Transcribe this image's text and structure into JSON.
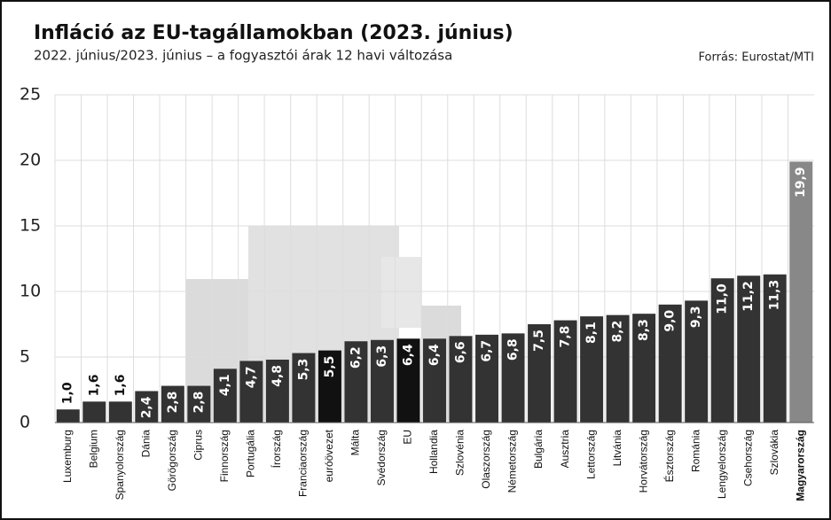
{
  "chart_data": {
    "type": "bar",
    "title": "Infláció az EU-tagállamokban (2023. június)",
    "subtitle": "2022. június/2023. június – a fogyasztói árak 12 havi változása",
    "source": "Forrás: Eurostat/MTI",
    "categories": [
      "Luxemburg",
      "Belgium",
      "Spanyolország",
      "Dánia",
      "Görögország",
      "Ciprus",
      "Finnország",
      "Portugália",
      "Írország",
      "Franciaország",
      "euróövezet",
      "Málta",
      "Svédország",
      "EU",
      "Hollandia",
      "Szlovénia",
      "Olaszország",
      "Németország",
      "Bulgária",
      "Ausztria",
      "Lettország",
      "Litvánia",
      "Horvátország",
      "Észtország",
      "Románia",
      "Lengyelország",
      "Csehország",
      "Szlovákia",
      "Magyarország"
    ],
    "values": [
      1.0,
      1.6,
      1.6,
      2.4,
      2.8,
      2.8,
      4.1,
      4.7,
      4.8,
      5.3,
      5.5,
      6.2,
      6.3,
      6.4,
      6.4,
      6.6,
      6.7,
      6.8,
      7.5,
      7.8,
      8.1,
      8.2,
      8.3,
      9.0,
      9.3,
      11.0,
      11.2,
      11.3,
      19.9
    ],
    "value_labels": [
      "1,0",
      "1,6",
      "1,6",
      "2,4",
      "2,8",
      "2,8",
      "4,1",
      "4,7",
      "4,8",
      "5,3",
      "5,5",
      "6,2",
      "6,3",
      "6,4",
      "6,4",
      "6,6",
      "6,7",
      "6,8",
      "7,5",
      "7,8",
      "8,1",
      "8,2",
      "8,3",
      "9,0",
      "9,3",
      "11,0",
      "11,2",
      "11,3",
      "19,9"
    ],
    "colors": [
      "#333",
      "#333",
      "#333",
      "#333",
      "#333",
      "#333",
      "#333",
      "#333",
      "#333",
      "#333",
      "#111",
      "#333",
      "#333",
      "#111",
      "#333",
      "#333",
      "#333",
      "#333",
      "#333",
      "#333",
      "#333",
      "#333",
      "#333",
      "#333",
      "#333",
      "#333",
      "#333",
      "#333",
      "#888"
    ],
    "ylim": [
      0,
      25
    ],
    "yticks": [
      0,
      5,
      10,
      15,
      20,
      25
    ],
    "grid": true
  }
}
